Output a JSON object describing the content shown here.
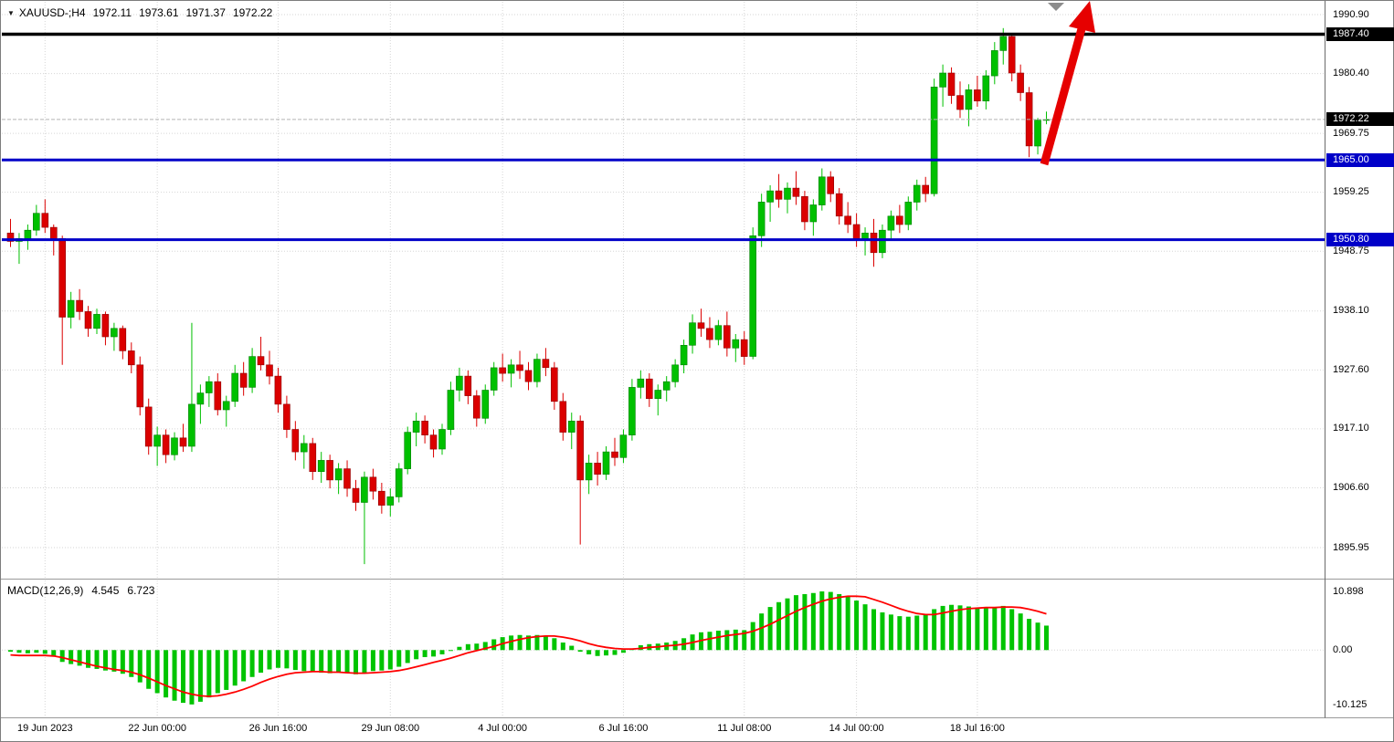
{
  "title": {
    "symbol_period": "XAUUSD-;H4",
    "open": "1972.11",
    "high": "1973.61",
    "low": "1971.37",
    "close": "1972.22"
  },
  "icons": {
    "dropdown": "▼"
  },
  "macd_label": {
    "name": "MACD(12,26,9)",
    "value_main": "4.545",
    "value_signal": "6.723"
  },
  "price_axis": {
    "labels": [
      "1990.90",
      "1980.40",
      "1969.75",
      "1959.25",
      "1948.75",
      "1938.10",
      "1927.60",
      "1917.10",
      "1906.60",
      "1895.95"
    ],
    "tags": [
      {
        "text": "1987.40",
        "price": 1987.4,
        "bg": "#000000"
      },
      {
        "text": "1972.22",
        "price": 1972.22,
        "bg": "#000000"
      },
      {
        "text": "1965.00",
        "price": 1965.0,
        "bg": "#0000C8"
      },
      {
        "text": "1950.80",
        "price": 1950.8,
        "bg": "#0000C8"
      }
    ]
  },
  "macd_axis": [
    "10.898",
    "0.00",
    "-10.125"
  ],
  "time_axis": [
    {
      "text": "19 Jun 2023",
      "idx": 4
    },
    {
      "text": "22 Jun 00:00",
      "idx": 17
    },
    {
      "text": "26 Jun 16:00",
      "idx": 31
    },
    {
      "text": "29 Jun 08:00",
      "idx": 44
    },
    {
      "text": "4 Jul 00:00",
      "idx": 57
    },
    {
      "text": "6 Jul 16:00",
      "idx": 71
    },
    {
      "text": "11 Jul 08:00",
      "idx": 85
    },
    {
      "text": "14 Jul 00:00",
      "idx": 98
    },
    {
      "text": "18 Jul 16:00",
      "idx": 112
    }
  ],
  "colors": {
    "background": "#FFFFFF",
    "bull": "#00C000",
    "bull_border": "#008000",
    "bear": "#DB0000",
    "bear_border": "#8F0000",
    "macd_bar": "#00C400",
    "signal": "#FF0000",
    "level_blue": "#0000C8",
    "level_black": "#000000",
    "arrow": "#E60000",
    "grid": "#D6D6D6",
    "axis_text": "#000000",
    "tag_text": "#FFFFFF",
    "current_line": "#B4B4B4",
    "divider": "#9A9A9A",
    "frame": "#7D7D7D",
    "shift_marker": "#8C8C8C"
  },
  "chart_data": {
    "type": "candlestick",
    "symbol": "XAUUSD",
    "timeframe": "H4",
    "title": "XAUUSD-;H4 1972.11 1973.61 1971.37 1972.22",
    "ylim": [
      1895.95,
      1990.9
    ],
    "current_price": 1972.22,
    "levels": [
      {
        "price": 1987.4,
        "color": "#000000",
        "width": 3.5
      },
      {
        "price": 1965.0,
        "color": "#0000C8",
        "width": 3
      },
      {
        "price": 1950.8,
        "color": "#0000C8",
        "width": 3
      }
    ],
    "ohlc": [
      [
        1952.0,
        1954.5,
        1949.5,
        1950.5
      ],
      [
        1950.5,
        1952.0,
        1946.5,
        1951.0
      ],
      [
        1951.0,
        1953.5,
        1949.0,
        1952.5
      ],
      [
        1952.5,
        1957.0,
        1951.5,
        1955.5
      ],
      [
        1955.5,
        1958.0,
        1952.0,
        1953.0
      ],
      [
        1953.0,
        1953.5,
        1948.0,
        1951.0
      ],
      [
        1951.0,
        1951.5,
        1928.5,
        1937.0
      ],
      [
        1937.0,
        1941.5,
        1935.0,
        1940.0
      ],
      [
        1940.0,
        1942.0,
        1936.5,
        1938.0
      ],
      [
        1938.0,
        1939.0,
        1933.5,
        1935.0
      ],
      [
        1935.0,
        1938.5,
        1934.0,
        1937.5
      ],
      [
        1937.5,
        1938.0,
        1932.0,
        1933.5
      ],
      [
        1933.5,
        1936.0,
        1931.0,
        1935.0
      ],
      [
        1935.0,
        1935.5,
        1929.5,
        1931.0
      ],
      [
        1931.0,
        1932.5,
        1927.0,
        1928.5
      ],
      [
        1928.5,
        1930.0,
        1919.5,
        1921.0
      ],
      [
        1921.0,
        1922.5,
        1912.5,
        1914.0
      ],
      [
        1914.0,
        1917.5,
        1910.5,
        1916.0
      ],
      [
        1916.0,
        1917.0,
        1911.0,
        1912.5
      ],
      [
        1912.5,
        1916.5,
        1911.5,
        1915.5
      ],
      [
        1915.5,
        1918.0,
        1913.0,
        1914.0
      ],
      [
        1914.0,
        1936.0,
        1913.0,
        1921.5
      ],
      [
        1921.5,
        1925.0,
        1918.0,
        1923.5
      ],
      [
        1923.5,
        1926.5,
        1921.0,
        1925.5
      ],
      [
        1925.5,
        1927.0,
        1919.5,
        1920.5
      ],
      [
        1920.5,
        1923.0,
        1917.5,
        1922.0
      ],
      [
        1922.0,
        1928.5,
        1921.0,
        1927.0
      ],
      [
        1927.0,
        1929.0,
        1923.0,
        1924.5
      ],
      [
        1924.5,
        1931.5,
        1923.5,
        1930.0
      ],
      [
        1930.0,
        1933.5,
        1927.5,
        1928.5
      ],
      [
        1928.5,
        1931.0,
        1925.0,
        1926.5
      ],
      [
        1926.5,
        1928.0,
        1920.0,
        1921.5
      ],
      [
        1921.5,
        1923.0,
        1915.5,
        1917.0
      ],
      [
        1917.0,
        1918.5,
        1911.5,
        1913.0
      ],
      [
        1913.0,
        1916.0,
        1910.0,
        1914.5
      ],
      [
        1914.5,
        1915.5,
        1908.0,
        1909.5
      ],
      [
        1909.5,
        1913.0,
        1907.5,
        1911.5
      ],
      [
        1911.5,
        1912.5,
        1906.5,
        1908.0
      ],
      [
        1908.0,
        1911.0,
        1905.5,
        1910.0
      ],
      [
        1910.0,
        1911.5,
        1905.0,
        1906.5
      ],
      [
        1906.5,
        1908.0,
        1902.5,
        1904.0
      ],
      [
        1904.0,
        1909.5,
        1893.0,
        1908.5
      ],
      [
        1908.5,
        1910.0,
        1904.5,
        1906.0
      ],
      [
        1906.0,
        1907.5,
        1902.0,
        1903.5
      ],
      [
        1903.5,
        1906.5,
        1901.5,
        1905.0
      ],
      [
        1905.0,
        1911.0,
        1904.0,
        1910.0
      ],
      [
        1910.0,
        1917.5,
        1909.0,
        1916.5
      ],
      [
        1916.5,
        1920.0,
        1914.0,
        1918.5
      ],
      [
        1918.5,
        1919.5,
        1914.5,
        1916.0
      ],
      [
        1916.0,
        1917.0,
        1912.0,
        1913.5
      ],
      [
        1913.5,
        1918.0,
        1912.5,
        1917.0
      ],
      [
        1917.0,
        1925.5,
        1916.0,
        1924.0
      ],
      [
        1924.0,
        1928.0,
        1922.0,
        1926.5
      ],
      [
        1926.5,
        1927.5,
        1921.5,
        1923.0
      ],
      [
        1923.0,
        1924.0,
        1917.5,
        1919.0
      ],
      [
        1919.0,
        1925.0,
        1918.0,
        1924.0
      ],
      [
        1924.0,
        1929.0,
        1923.0,
        1928.0
      ],
      [
        1928.0,
        1930.5,
        1925.5,
        1927.0
      ],
      [
        1927.0,
        1929.5,
        1924.5,
        1928.5
      ],
      [
        1928.5,
        1931.0,
        1926.0,
        1927.5
      ],
      [
        1927.5,
        1929.0,
        1924.0,
        1925.5
      ],
      [
        1925.5,
        1930.5,
        1924.5,
        1929.5
      ],
      [
        1929.5,
        1931.5,
        1926.5,
        1928.0
      ],
      [
        1928.0,
        1929.0,
        1920.5,
        1922.0
      ],
      [
        1922.0,
        1923.5,
        1915.0,
        1916.5
      ],
      [
        1916.5,
        1920.0,
        1913.5,
        1918.5
      ],
      [
        1918.5,
        1919.5,
        1896.5,
        1908.0
      ],
      [
        1908.0,
        1912.5,
        1905.5,
        1911.0
      ],
      [
        1911.0,
        1913.0,
        1907.0,
        1909.0
      ],
      [
        1909.0,
        1914.0,
        1908.0,
        1913.0
      ],
      [
        1913.0,
        1915.5,
        1910.5,
        1912.0
      ],
      [
        1912.0,
        1917.0,
        1911.0,
        1916.0
      ],
      [
        1916.0,
        1926.0,
        1915.0,
        1924.5
      ],
      [
        1924.5,
        1927.5,
        1922.5,
        1926.0
      ],
      [
        1926.0,
        1927.0,
        1921.0,
        1922.5
      ],
      [
        1922.5,
        1925.0,
        1919.5,
        1924.0
      ],
      [
        1924.0,
        1926.5,
        1922.0,
        1925.5
      ],
      [
        1925.5,
        1929.5,
        1924.5,
        1928.5
      ],
      [
        1928.5,
        1933.0,
        1927.0,
        1932.0
      ],
      [
        1932.0,
        1937.5,
        1930.5,
        1936.0
      ],
      [
        1936.0,
        1938.5,
        1933.5,
        1935.0
      ],
      [
        1935.0,
        1937.0,
        1931.5,
        1933.0
      ],
      [
        1933.0,
        1936.5,
        1932.0,
        1935.5
      ],
      [
        1935.5,
        1938.0,
        1930.0,
        1931.5
      ],
      [
        1931.5,
        1934.0,
        1929.0,
        1933.0
      ],
      [
        1933.0,
        1934.5,
        1928.5,
        1930.0
      ],
      [
        1930.0,
        1953.0,
        1929.5,
        1951.5
      ],
      [
        1951.5,
        1959.0,
        1949.5,
        1957.5
      ],
      [
        1957.5,
        1960.5,
        1954.0,
        1959.5
      ],
      [
        1959.5,
        1962.5,
        1956.5,
        1958.0
      ],
      [
        1958.0,
        1961.0,
        1955.5,
        1960.0
      ],
      [
        1960.0,
        1963.0,
        1957.0,
        1958.5
      ],
      [
        1958.5,
        1959.5,
        1952.5,
        1954.0
      ],
      [
        1954.0,
        1958.0,
        1951.5,
        1957.0
      ],
      [
        1957.0,
        1963.5,
        1956.0,
        1962.0
      ],
      [
        1962.0,
        1963.0,
        1957.5,
        1959.0
      ],
      [
        1959.0,
        1960.0,
        1953.5,
        1955.0
      ],
      [
        1955.0,
        1957.5,
        1952.0,
        1953.5
      ],
      [
        1953.5,
        1955.5,
        1949.5,
        1951.0
      ],
      [
        1951.0,
        1953.0,
        1948.0,
        1952.0
      ],
      [
        1952.0,
        1954.5,
        1946.0,
        1948.5
      ],
      [
        1948.5,
        1953.5,
        1947.5,
        1952.5
      ],
      [
        1952.5,
        1956.0,
        1951.0,
        1955.0
      ],
      [
        1955.0,
        1957.0,
        1952.0,
        1953.5
      ],
      [
        1953.5,
        1958.5,
        1952.5,
        1957.5
      ],
      [
        1957.5,
        1961.5,
        1956.0,
        1960.5
      ],
      [
        1960.5,
        1962.0,
        1957.5,
        1959.0
      ],
      [
        1959.0,
        1979.5,
        1958.5,
        1978.0
      ],
      [
        1978.0,
        1982.0,
        1974.5,
        1980.5
      ],
      [
        1980.5,
        1981.5,
        1975.0,
        1976.5
      ],
      [
        1976.5,
        1979.0,
        1972.5,
        1974.0
      ],
      [
        1974.0,
        1978.5,
        1971.0,
        1977.5
      ],
      [
        1977.5,
        1980.0,
        1974.5,
        1975.5
      ],
      [
        1975.5,
        1981.0,
        1974.0,
        1980.0
      ],
      [
        1980.0,
        1986.0,
        1978.5,
        1984.5
      ],
      [
        1984.5,
        1988.5,
        1982.0,
        1987.0
      ],
      [
        1987.0,
        1987.5,
        1979.0,
        1980.5
      ],
      [
        1980.5,
        1982.0,
        1975.5,
        1977.0
      ],
      [
        1977.0,
        1978.0,
        1965.5,
        1967.5
      ],
      [
        1967.5,
        1972.5,
        1966.0,
        1972.11
      ],
      [
        1972.11,
        1973.61,
        1971.37,
        1972.22
      ]
    ],
    "indicator": {
      "name": "MACD(12,26,9)",
      "type": "bar+line",
      "ylim": [
        -10.125,
        10.898
      ],
      "histogram": [
        -0.3,
        -0.5,
        -0.6,
        -0.5,
        -0.7,
        -1.2,
        -2.2,
        -2.6,
        -2.9,
        -3.3,
        -3.5,
        -3.8,
        -4.0,
        -4.4,
        -5.0,
        -6.0,
        -7.2,
        -8.0,
        -8.8,
        -9.4,
        -9.8,
        -10.1,
        -9.6,
        -8.8,
        -8.0,
        -7.4,
        -6.6,
        -5.8,
        -5.0,
        -4.2,
        -3.6,
        -3.3,
        -3.4,
        -3.7,
        -3.9,
        -4.1,
        -4.2,
        -4.3,
        -4.2,
        -4.3,
        -4.5,
        -4.2,
        -3.9,
        -3.8,
        -3.6,
        -3.1,
        -2.4,
        -1.7,
        -1.3,
        -1.2,
        -0.8,
        -0.1,
        0.6,
        1.1,
        1.2,
        1.5,
        2.0,
        2.4,
        2.7,
        2.8,
        2.7,
        2.8,
        2.7,
        2.2,
        1.4,
        0.8,
        -0.3,
        -0.8,
        -1.1,
        -1.0,
        -0.9,
        -0.5,
        0.3,
        0.9,
        1.1,
        1.2,
        1.4,
        1.7,
        2.2,
        2.9,
        3.3,
        3.4,
        3.6,
        3.7,
        3.8,
        3.7,
        5.2,
        6.8,
        8.0,
        8.9,
        9.6,
        10.2,
        10.4,
        10.6,
        10.9,
        10.8,
        10.4,
        9.9,
        9.2,
        8.5,
        7.6,
        7.0,
        6.6,
        6.3,
        6.2,
        6.4,
        6.6,
        7.6,
        8.2,
        8.4,
        8.3,
        8.1,
        7.9,
        7.8,
        8.0,
        8.2,
        7.6,
        6.8,
        5.8,
        5.1,
        4.545
      ],
      "signal": [
        -0.9,
        -1.0,
        -1.0,
        -1.0,
        -1.0,
        -1.1,
        -1.4,
        -1.8,
        -2.2,
        -2.6,
        -3.0,
        -3.3,
        -3.6,
        -3.8,
        -4.1,
        -4.6,
        -5.2,
        -5.9,
        -6.6,
        -7.2,
        -7.8,
        -8.2,
        -8.5,
        -8.6,
        -8.5,
        -8.2,
        -7.8,
        -7.3,
        -6.7,
        -6.0,
        -5.4,
        -4.9,
        -4.5,
        -4.2,
        -4.1,
        -4.0,
        -4.0,
        -4.1,
        -4.1,
        -4.2,
        -4.3,
        -4.3,
        -4.2,
        -4.1,
        -4.0,
        -3.8,
        -3.5,
        -3.1,
        -2.7,
        -2.3,
        -1.9,
        -1.5,
        -1.0,
        -0.5,
        -0.1,
        0.3,
        0.7,
        1.2,
        1.6,
        2.0,
        2.3,
        2.5,
        2.6,
        2.6,
        2.4,
        2.1,
        1.7,
        1.2,
        0.8,
        0.5,
        0.3,
        0.2,
        0.2,
        0.3,
        0.5,
        0.6,
        0.8,
        0.9,
        1.1,
        1.4,
        1.8,
        2.1,
        2.4,
        2.7,
        2.9,
        3.1,
        3.5,
        4.1,
        4.8,
        5.6,
        6.4,
        7.2,
        7.9,
        8.5,
        9.1,
        9.5,
        9.8,
        10.0,
        10.0,
        9.9,
        9.4,
        8.9,
        8.3,
        7.7,
        7.2,
        6.8,
        6.6,
        6.6,
        6.9,
        7.2,
        7.5,
        7.7,
        7.8,
        7.9,
        7.9,
        8.0,
        8.0,
        7.9,
        7.6,
        7.2,
        6.723
      ]
    },
    "annotation_arrow": {
      "direction": "up",
      "color": "#E60000"
    }
  }
}
